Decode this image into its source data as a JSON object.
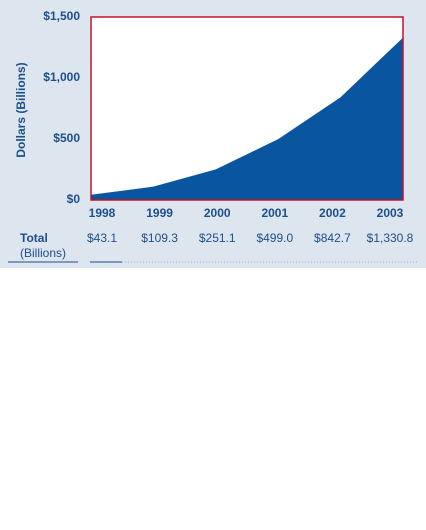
{
  "chart_data": {
    "type": "area",
    "y_label": "Dollars (Billions)",
    "categories": [
      "1998",
      "1999",
      "2000",
      "2001",
      "2002",
      "2003"
    ],
    "values": [
      43.1,
      109.3,
      251.1,
      499.0,
      842.7,
      1330.8
    ],
    "value_labels": [
      "$43.1",
      "$109.3",
      "$251.1",
      "$499.0",
      "$842.7",
      "$1,330.8"
    ],
    "table_label": "Total",
    "table_sublabel": "(Billions)",
    "color": "#0a55a0",
    "frame_color": "#c8102e",
    "ylim": [
      0,
      1500
    ],
    "yticks": [
      {
        "value": 0,
        "label": "$0"
      },
      {
        "value": 500,
        "label": "$500"
      },
      {
        "value": 1000,
        "label": "$1,000"
      },
      {
        "value": 1500,
        "label": "$1,500"
      }
    ]
  }
}
